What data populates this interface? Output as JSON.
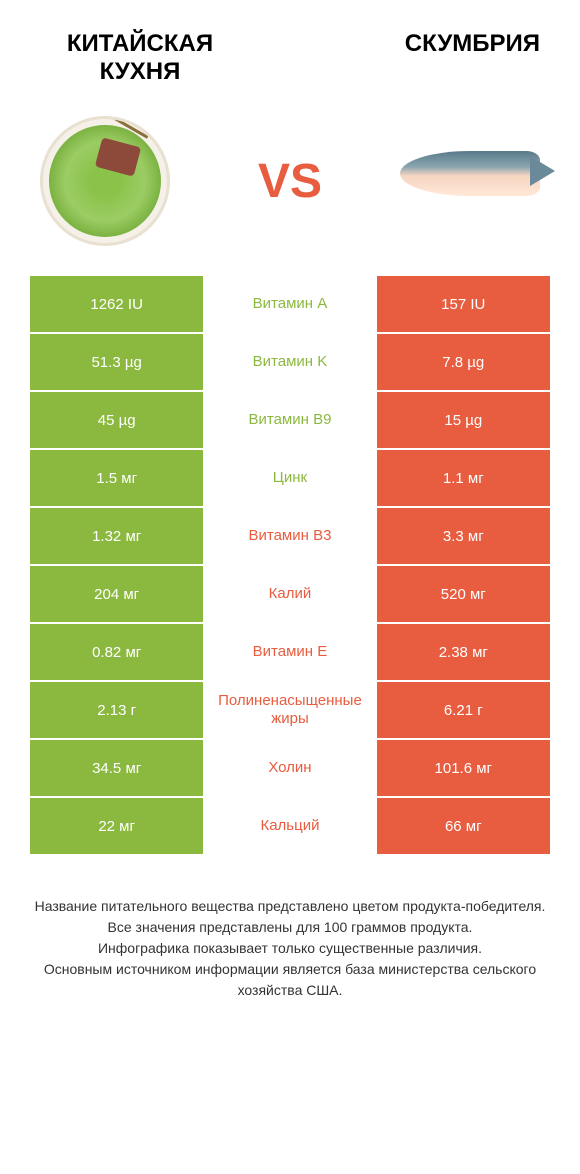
{
  "titles": {
    "left": "КИТАЙСКАЯ\nКУХНЯ",
    "right": "СКУМБРИЯ"
  },
  "vs": "VS",
  "colors": {
    "left": "#8bb93f",
    "right": "#e85c3f"
  },
  "nutrients": [
    {
      "left": "1262 IU",
      "name": "Витамин A",
      "right": "157 IU",
      "winner": "left"
    },
    {
      "left": "51.3 µg",
      "name": "Витамин K",
      "right": "7.8 µg",
      "winner": "left"
    },
    {
      "left": "45 µg",
      "name": "Витамин B9",
      "right": "15 µg",
      "winner": "left"
    },
    {
      "left": "1.5 мг",
      "name": "Цинк",
      "right": "1.1 мг",
      "winner": "left"
    },
    {
      "left": "1.32 мг",
      "name": "Витамин B3",
      "right": "3.3 мг",
      "winner": "right"
    },
    {
      "left": "204 мг",
      "name": "Калий",
      "right": "520 мг",
      "winner": "right"
    },
    {
      "left": "0.82 мг",
      "name": "Витамин E",
      "right": "2.38 мг",
      "winner": "right"
    },
    {
      "left": "2.13 г",
      "name": "Полиненасыщенные жиры",
      "right": "6.21 г",
      "winner": "right"
    },
    {
      "left": "34.5 мг",
      "name": "Холин",
      "right": "101.6 мг",
      "winner": "right"
    },
    {
      "left": "22 мг",
      "name": "Кальций",
      "right": "66 мг",
      "winner": "right"
    }
  ],
  "footer": {
    "line1": "Название питательного вещества представлено цветом продукта-победителя.",
    "line2": "Все значения представлены для 100 граммов продукта.",
    "line3": "Инфографика показывает только существенные различия.",
    "line4": "Основным источником информации является база министерства сельского хозяйства США."
  }
}
